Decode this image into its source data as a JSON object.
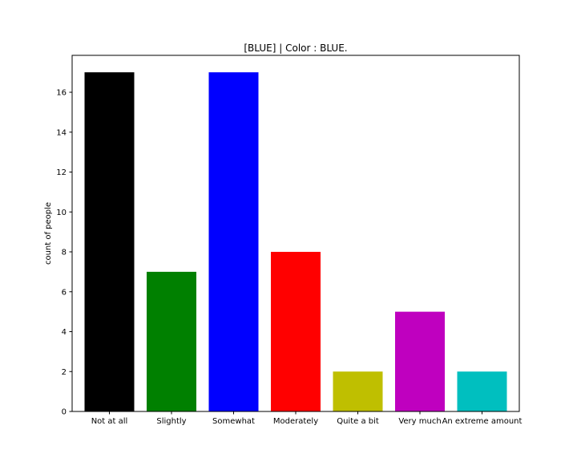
{
  "chart_data": {
    "type": "bar",
    "title": "[BLUE] | Color : BLUE.",
    "xlabel": "",
    "ylabel": "count of people",
    "categories": [
      "Not at all",
      "Slightly",
      "Somewhat",
      "Moderately",
      "Quite a bit",
      "Very much",
      "An extreme amount"
    ],
    "values": [
      17,
      7,
      17,
      8,
      2,
      5,
      2
    ],
    "colors": [
      "#000000",
      "#008000",
      "#0000ff",
      "#ff0000",
      "#bfbf00",
      "#bf00bf",
      "#00bfbf"
    ],
    "ylim": [
      0,
      17.85
    ],
    "yticks": [
      "0",
      "2",
      "4",
      "6",
      "8",
      "10",
      "12",
      "14",
      "16"
    ],
    "grid": false,
    "legend": "none"
  }
}
